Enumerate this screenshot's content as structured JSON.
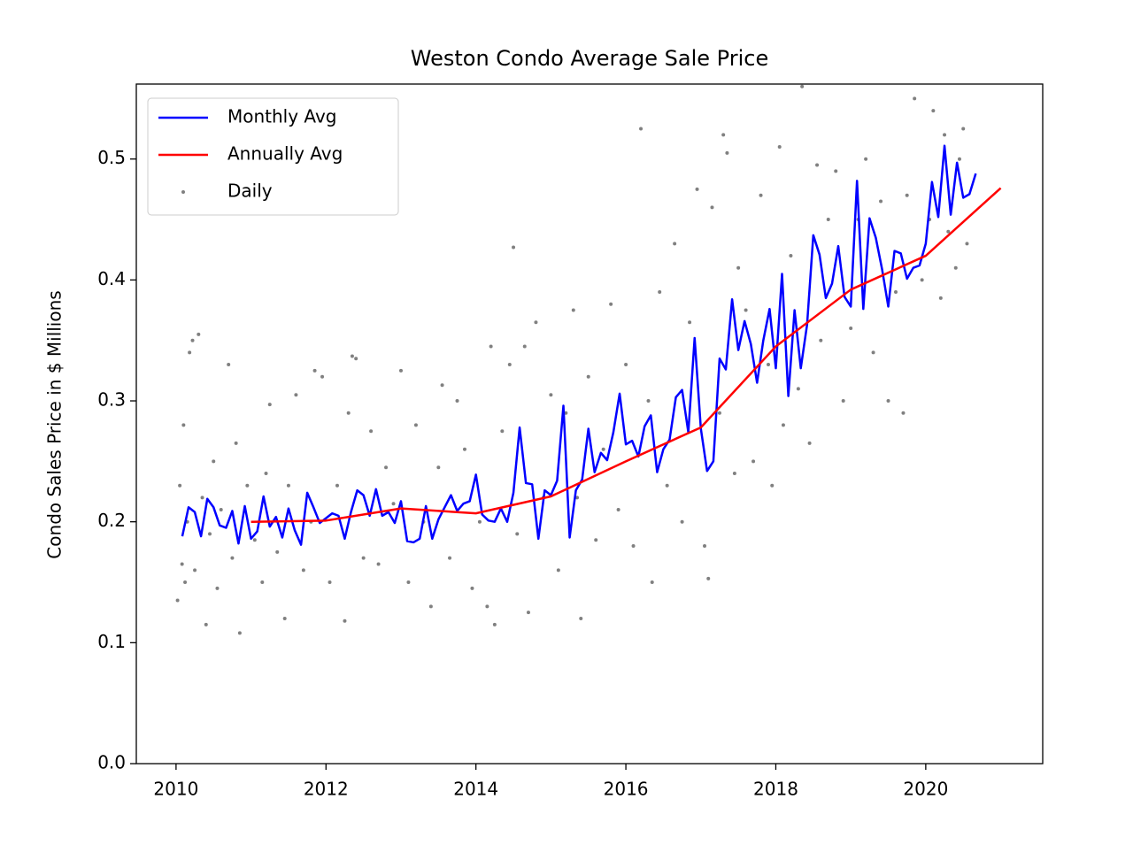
{
  "chart_data": {
    "type": "line",
    "title": "Weston Condo Average Sale Price",
    "ylabel": "Condo Sales Price in $ Millions",
    "xlim": [
      2009.47,
      2021.56
    ],
    "ylim": [
      0,
      0.562
    ],
    "xticks": [
      2010,
      2012,
      2014,
      2016,
      2018,
      2020
    ],
    "yticks": [
      {
        "value": 0,
        "label": "0.0"
      },
      0.1,
      0.2,
      0.3,
      0.4,
      0.5
    ],
    "legend": "upper left",
    "series": [
      {
        "name": "Monthly Avg",
        "kind": "line",
        "color": "#0000ff",
        "x": [
          2010.083,
          2010.167,
          2010.25,
          2010.333,
          2010.417,
          2010.5,
          2010.583,
          2010.667,
          2010.75,
          2010.833,
          2010.917,
          2011.0,
          2011.083,
          2011.167,
          2011.25,
          2011.333,
          2011.417,
          2011.5,
          2011.583,
          2011.667,
          2011.75,
          2011.833,
          2011.917,
          2012.0,
          2012.083,
          2012.167,
          2012.25,
          2012.333,
          2012.417,
          2012.5,
          2012.583,
          2012.667,
          2012.75,
          2012.833,
          2012.917,
          2013.0,
          2013.083,
          2013.167,
          2013.25,
          2013.333,
          2013.417,
          2013.5,
          2013.583,
          2013.667,
          2013.75,
          2013.833,
          2013.917,
          2014.0,
          2014.083,
          2014.167,
          2014.25,
          2014.333,
          2014.417,
          2014.5,
          2014.583,
          2014.667,
          2014.75,
          2014.833,
          2014.917,
          2015.0,
          2015.083,
          2015.167,
          2015.25,
          2015.333,
          2015.417,
          2015.5,
          2015.583,
          2015.667,
          2015.75,
          2015.833,
          2015.917,
          2016.0,
          2016.083,
          2016.167,
          2016.25,
          2016.333,
          2016.417,
          2016.5,
          2016.583,
          2016.667,
          2016.75,
          2016.833,
          2016.917,
          2017.0,
          2017.083,
          2017.167,
          2017.25,
          2017.333,
          2017.417,
          2017.5,
          2017.583,
          2017.667,
          2017.75,
          2017.833,
          2017.917,
          2018.0,
          2018.083,
          2018.167,
          2018.25,
          2018.333,
          2018.417,
          2018.5,
          2018.583,
          2018.667,
          2018.75,
          2018.833,
          2018.917,
          2019.0,
          2019.083,
          2019.167,
          2019.25,
          2019.333,
          2019.417,
          2019.5,
          2019.583,
          2019.667,
          2019.75,
          2019.833,
          2019.917,
          2020.0,
          2020.083,
          2020.167,
          2020.25,
          2020.333,
          2020.417,
          2020.5,
          2020.583,
          2020.667
        ],
        "values": [
          0.188,
          0.212,
          0.208,
          0.188,
          0.219,
          0.212,
          0.197,
          0.195,
          0.209,
          0.182,
          0.213,
          0.186,
          0.192,
          0.221,
          0.196,
          0.204,
          0.187,
          0.211,
          0.193,
          0.181,
          0.224,
          0.212,
          0.199,
          0.203,
          0.207,
          0.205,
          0.186,
          0.208,
          0.226,
          0.222,
          0.205,
          0.227,
          0.205,
          0.208,
          0.199,
          0.217,
          0.184,
          0.183,
          0.186,
          0.213,
          0.186,
          0.202,
          0.212,
          0.222,
          0.209,
          0.215,
          0.217,
          0.239,
          0.206,
          0.201,
          0.2,
          0.211,
          0.2,
          0.224,
          0.278,
          0.232,
          0.231,
          0.186,
          0.226,
          0.222,
          0.234,
          0.296,
          0.187,
          0.226,
          0.235,
          0.277,
          0.241,
          0.257,
          0.251,
          0.274,
          0.306,
          0.264,
          0.267,
          0.254,
          0.279,
          0.288,
          0.241,
          0.26,
          0.268,
          0.303,
          0.309,
          0.274,
          0.352,
          0.277,
          0.242,
          0.25,
          0.335,
          0.326,
          0.384,
          0.342,
          0.366,
          0.347,
          0.315,
          0.35,
          0.376,
          0.327,
          0.405,
          0.304,
          0.375,
          0.327,
          0.363,
          0.437,
          0.421,
          0.385,
          0.397,
          0.428,
          0.386,
          0.378,
          0.482,
          0.376,
          0.451,
          0.435,
          0.409,
          0.378,
          0.424,
          0.422,
          0.401,
          0.41,
          0.412,
          0.43,
          0.481,
          0.452,
          0.511,
          0.454,
          0.497,
          0.468,
          0.471,
          0.488
        ]
      },
      {
        "name": "Annually Avg",
        "kind": "line",
        "color": "#ff0000",
        "x": [
          2011,
          2012,
          2013,
          2014,
          2015,
          2016,
          2017,
          2018,
          2019,
          2020,
          2021
        ],
        "values": [
          0.2,
          0.201,
          0.211,
          0.207,
          0.221,
          0.25,
          0.278,
          0.345,
          0.392,
          0.42,
          0.476
        ]
      },
      {
        "name": "Daily",
        "kind": "scatter",
        "color": "#808080",
        "x": [
          2010.02,
          2010.05,
          2010.08,
          2010.1,
          2010.12,
          2010.15,
          2010.18,
          2010.22,
          2010.25,
          2010.3,
          2010.35,
          2010.4,
          2010.45,
          2010.5,
          2010.55,
          2010.6,
          2010.7,
          2010.75,
          2010.8,
          2010.85,
          2010.95,
          2011.05,
          2011.15,
          2011.2,
          2011.25,
          2011.35,
          2011.45,
          2011.5,
          2011.6,
          2011.7,
          2011.8,
          2011.85,
          2011.95,
          2012.05,
          2012.15,
          2012.25,
          2012.3,
          2012.35,
          2012.4,
          2012.5,
          2012.6,
          2012.7,
          2012.8,
          2012.9,
          2013.0,
          2013.1,
          2013.2,
          2013.3,
          2013.4,
          2013.5,
          2013.55,
          2013.65,
          2013.75,
          2013.85,
          2013.95,
          2014.05,
          2014.15,
          2014.2,
          2014.25,
          2014.35,
          2014.45,
          2014.5,
          2014.55,
          2014.65,
          2014.7,
          2014.8,
          2014.9,
          2015.0,
          2015.1,
          2015.2,
          2015.3,
          2015.35,
          2015.4,
          2015.5,
          2015.6,
          2015.7,
          2015.8,
          2015.9,
          2016.0,
          2016.1,
          2016.2,
          2016.3,
          2016.35,
          2016.45,
          2016.55,
          2016.65,
          2016.75,
          2016.85,
          2016.95,
          2017.05,
          2017.1,
          2017.15,
          2017.25,
          2017.3,
          2017.35,
          2017.45,
          2017.5,
          2017.6,
          2017.7,
          2017.8,
          2017.9,
          2017.95,
          2018.05,
          2018.1,
          2018.2,
          2018.3,
          2018.35,
          2018.45,
          2018.55,
          2018.6,
          2018.7,
          2018.8,
          2018.9,
          2019.0,
          2019.1,
          2019.2,
          2019.3,
          2019.4,
          2019.5,
          2019.6,
          2019.7,
          2019.75,
          2019.85,
          2019.95,
          2020.05,
          2020.1,
          2020.2,
          2020.25,
          2020.3,
          2020.4,
          2020.45,
          2020.5,
          2020.55
        ],
        "values": [
          0.135,
          0.23,
          0.165,
          0.28,
          0.15,
          0.2,
          0.34,
          0.35,
          0.16,
          0.355,
          0.22,
          0.115,
          0.19,
          0.25,
          0.145,
          0.21,
          0.33,
          0.17,
          0.265,
          0.108,
          0.23,
          0.185,
          0.15,
          0.24,
          0.297,
          0.175,
          0.12,
          0.23,
          0.305,
          0.16,
          0.2,
          0.325,
          0.32,
          0.15,
          0.23,
          0.118,
          0.29,
          0.337,
          0.335,
          0.17,
          0.275,
          0.165,
          0.245,
          0.215,
          0.325,
          0.15,
          0.28,
          0.2,
          0.13,
          0.245,
          0.313,
          0.17,
          0.3,
          0.26,
          0.145,
          0.2,
          0.13,
          0.345,
          0.115,
          0.275,
          0.33,
          0.427,
          0.19,
          0.345,
          0.125,
          0.365,
          0.22,
          0.305,
          0.16,
          0.29,
          0.375,
          0.22,
          0.12,
          0.32,
          0.185,
          0.26,
          0.38,
          0.21,
          0.33,
          0.18,
          0.525,
          0.3,
          0.15,
          0.39,
          0.23,
          0.43,
          0.2,
          0.365,
          0.475,
          0.18,
          0.153,
          0.46,
          0.29,
          0.52,
          0.505,
          0.24,
          0.41,
          0.375,
          0.25,
          0.47,
          0.33,
          0.23,
          0.51,
          0.28,
          0.42,
          0.31,
          0.56,
          0.265,
          0.495,
          0.35,
          0.45,
          0.49,
          0.3,
          0.36,
          0.45,
          0.5,
          0.34,
          0.465,
          0.3,
          0.39,
          0.29,
          0.47,
          0.55,
          0.4,
          0.45,
          0.54,
          0.385,
          0.52,
          0.44,
          0.41,
          0.5,
          0.525,
          0.43
        ]
      }
    ]
  }
}
